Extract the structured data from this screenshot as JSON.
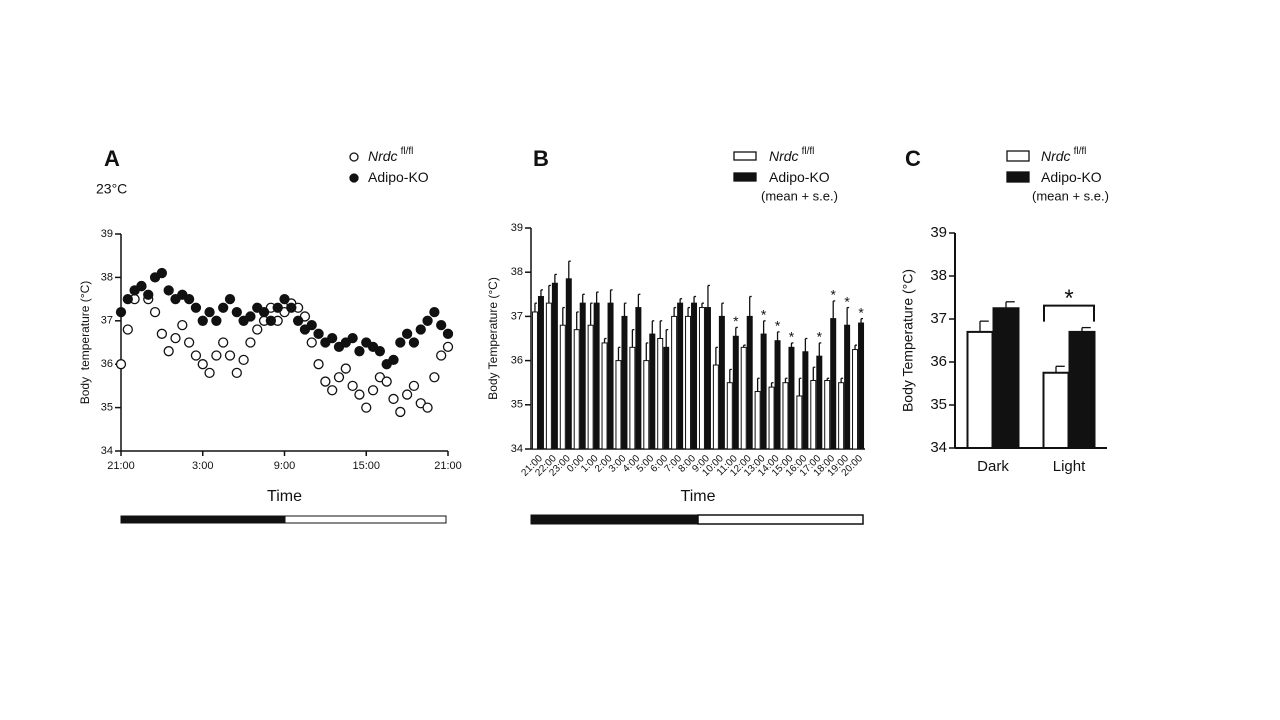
{
  "chart_data": [
    {
      "type": "scatter",
      "panel": "A",
      "condition": "23°C",
      "ylabel": "Body  temperature (°C)",
      "xlabel": "Time",
      "x": [
        0,
        0.5,
        1,
        1.5,
        2,
        2.5,
        3,
        3.5,
        4,
        4.5,
        5,
        5.5,
        6,
        6.5,
        7,
        7.5,
        8,
        8.5,
        9,
        9.5,
        10,
        10.5,
        11,
        11.5,
        12,
        12.5,
        13,
        13.5,
        14,
        14.5,
        15,
        15.5,
        16,
        16.5,
        17,
        17.5,
        18,
        18.5,
        19,
        19.5,
        20,
        20.5,
        21,
        21.5,
        22,
        22.5,
        23,
        23.5,
        24
      ],
      "xlim": [
        0,
        24
      ],
      "xticks": [
        {
          "value": 0,
          "label": "21:00"
        },
        {
          "value": 6,
          "label": "3:00"
        },
        {
          "value": 12,
          "label": "9:00"
        },
        {
          "value": 18,
          "label": "15:00"
        },
        {
          "value": 24,
          "label": "21:00"
        }
      ],
      "ylim": [
        34,
        39
      ],
      "yticks": [
        34,
        35,
        36,
        37,
        38,
        39
      ],
      "series": [
        {
          "name": "Nrdc",
          "name_sup": "fl/fl",
          "color": "#ffffff",
          "values": [
            36.0,
            36.8,
            37.5,
            37.8,
            37.5,
            37.2,
            36.7,
            36.3,
            36.6,
            36.9,
            36.5,
            36.2,
            36.0,
            35.8,
            36.2,
            36.5,
            36.2,
            35.8,
            36.1,
            36.5,
            36.8,
            37.0,
            37.3,
            37.0,
            37.2,
            37.4,
            37.3,
            37.1,
            36.5,
            36.0,
            35.6,
            35.4,
            35.7,
            35.9,
            35.5,
            35.3,
            35.0,
            35.4,
            35.7,
            35.6,
            35.2,
            34.9,
            35.3,
            35.5,
            35.1,
            35.0,
            35.7,
            36.2,
            36.4
          ]
        },
        {
          "name": "Adipo-KO",
          "color": "#111111",
          "values": [
            37.2,
            37.5,
            37.7,
            37.8,
            37.6,
            38.0,
            38.1,
            37.7,
            37.5,
            37.6,
            37.5,
            37.3,
            37.0,
            37.2,
            37.0,
            37.3,
            37.5,
            37.2,
            37.0,
            37.1,
            37.3,
            37.2,
            37.0,
            37.3,
            37.5,
            37.3,
            37.0,
            36.8,
            36.9,
            36.7,
            36.5,
            36.6,
            36.4,
            36.5,
            36.6,
            36.3,
            36.5,
            36.4,
            36.3,
            36.0,
            36.1,
            36.5,
            36.7,
            36.5,
            36.8,
            37.0,
            37.2,
            36.9,
            36.7
          ]
        }
      ]
    },
    {
      "type": "bar",
      "panel": "B",
      "ylabel": "Body Temperature (°C)",
      "xlabel": "Time",
      "legend_note": "(mean + s.e.)",
      "categories": [
        "21:00",
        "22:00",
        "23:00",
        "0:00",
        "1:00",
        "2:00",
        "3:00",
        "4:00",
        "5:00",
        "6:00",
        "7:00",
        "8:00",
        "9:00",
        "10:00",
        "11:00",
        "12:00",
        "13:00",
        "14:00",
        "15:00",
        "16:00",
        "17:00",
        "18:00",
        "19:00",
        "20:00"
      ],
      "ylim": [
        34,
        39
      ],
      "yticks": [
        34,
        35,
        36,
        37,
        38,
        39
      ],
      "significance": [
        null,
        null,
        null,
        null,
        null,
        null,
        null,
        null,
        null,
        null,
        null,
        null,
        null,
        null,
        "*",
        null,
        "*",
        "*",
        "*",
        null,
        "*",
        "*",
        "*",
        "*"
      ],
      "series": [
        {
          "name": "Nrdc",
          "name_sup": "fl/fl",
          "color": "#ffffff",
          "values": [
            37.1,
            37.3,
            36.8,
            36.7,
            36.8,
            36.4,
            36.0,
            36.3,
            36.0,
            36.5,
            37.0,
            37.0,
            37.2,
            35.9,
            35.5,
            36.3,
            35.3,
            35.4,
            35.5,
            35.2,
            35.55,
            35.55,
            35.5,
            36.25
          ],
          "errors": [
            0.2,
            0.4,
            0.4,
            0.4,
            0.5,
            0.1,
            0.3,
            0.4,
            0.4,
            0.4,
            0.2,
            0.2,
            0.1,
            0.4,
            0.3,
            0.05,
            0.3,
            0.1,
            0.1,
            0.4,
            0.3,
            0.05,
            0.1,
            0.1
          ]
        },
        {
          "name": "Adipo-KO",
          "color": "#111111",
          "values": [
            37.45,
            37.75,
            37.85,
            37.3,
            37.3,
            37.3,
            37.0,
            37.2,
            36.6,
            36.3,
            37.3,
            37.3,
            37.2,
            37.0,
            36.55,
            37.0,
            36.6,
            36.45,
            36.3,
            36.2,
            36.1,
            36.95,
            36.8,
            36.85
          ],
          "errors": [
            0.15,
            0.2,
            0.4,
            0.2,
            0.25,
            0.3,
            0.3,
            0.3,
            0.3,
            0.4,
            0.1,
            0.15,
            0.5,
            0.3,
            0.2,
            0.45,
            0.3,
            0.2,
            0.1,
            0.3,
            0.3,
            0.4,
            0.4,
            0.1
          ]
        }
      ]
    },
    {
      "type": "bar",
      "panel": "C",
      "ylabel": "Body Temperature (°C)",
      "legend_note": "(mean + s.e.)",
      "categories": [
        "Dark",
        "Light"
      ],
      "ylim": [
        34,
        39
      ],
      "yticks": [
        34,
        35,
        36,
        37,
        38,
        39
      ],
      "significance": [
        null,
        "*"
      ],
      "bracket": true,
      "series": [
        {
          "name": "Nrdc",
          "name_sup": "fl/fl",
          "color": "#ffffff",
          "values": [
            36.7,
            35.75
          ],
          "errors": [
            0.25,
            0.15
          ]
        },
        {
          "name": "Adipo-KO",
          "color": "#111111",
          "values": [
            37.25,
            36.7
          ],
          "errors": [
            0.15,
            0.1
          ]
        }
      ]
    }
  ]
}
